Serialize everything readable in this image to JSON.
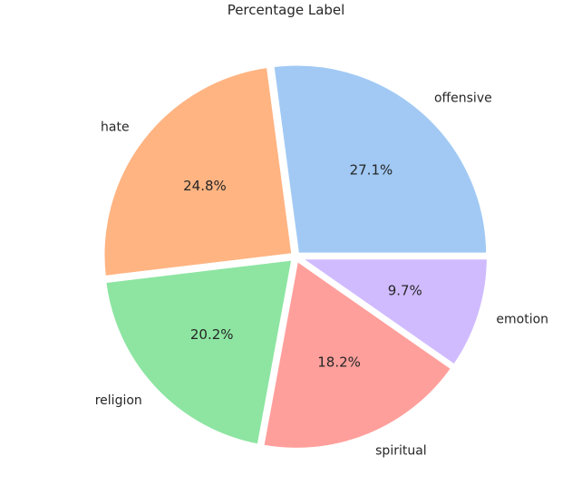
{
  "chart_data": {
    "type": "pie",
    "title": "Percentage Label",
    "labels": [
      "offensive",
      "hate",
      "religion",
      "spiritual",
      "emotion"
    ],
    "values": [
      27.1,
      24.8,
      20.2,
      18.2,
      9.7
    ],
    "percent_labels": [
      "27.1%",
      "24.8%",
      "20.2%",
      "18.2%",
      "9.7%"
    ],
    "colors": [
      "#a1c9f4",
      "#ffb482",
      "#8de5a1",
      "#ff9f9b",
      "#d0bbff"
    ],
    "start_angle_deg": 0,
    "direction": "counterclockwise",
    "exploded": true
  }
}
